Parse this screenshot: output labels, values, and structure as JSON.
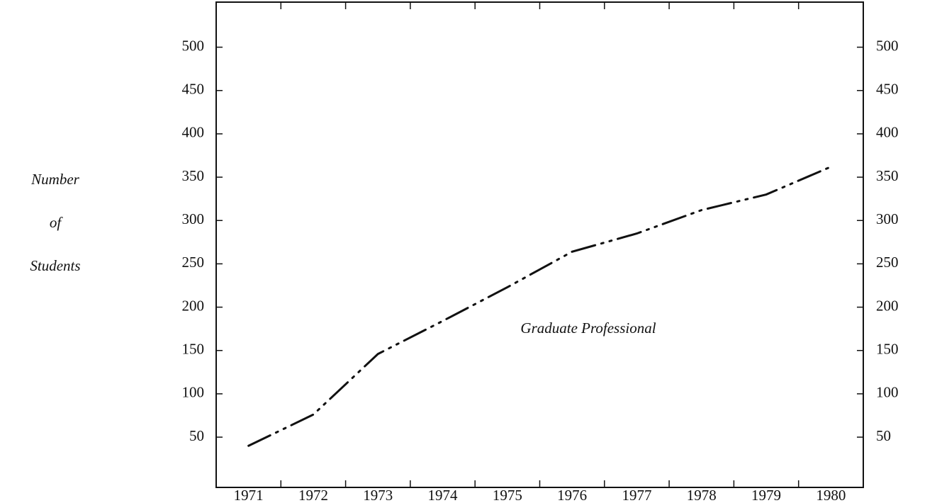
{
  "chart_data": {
    "type": "line",
    "y_label": [
      "Number",
      "of",
      "Students"
    ],
    "categories": [
      "1971",
      "1972",
      "1973",
      "1974",
      "1975",
      "1976",
      "1977",
      "1978",
      "1979",
      "1980"
    ],
    "series": [
      {
        "name": "Graduate Professional",
        "color": "#111111",
        "values": [
          40,
          76,
          146,
          184,
          223,
          264,
          285,
          312,
          330,
          362
        ]
      }
    ],
    "ylim": [
      -8,
      552
    ],
    "yticks": [
      50,
      100,
      150,
      200,
      250,
      300,
      350,
      400,
      450,
      500
    ],
    "y2lim": [
      -8,
      552
    ],
    "y2ticks": [
      50,
      100,
      150,
      200,
      250,
      300,
      350,
      400,
      450,
      500
    ]
  }
}
